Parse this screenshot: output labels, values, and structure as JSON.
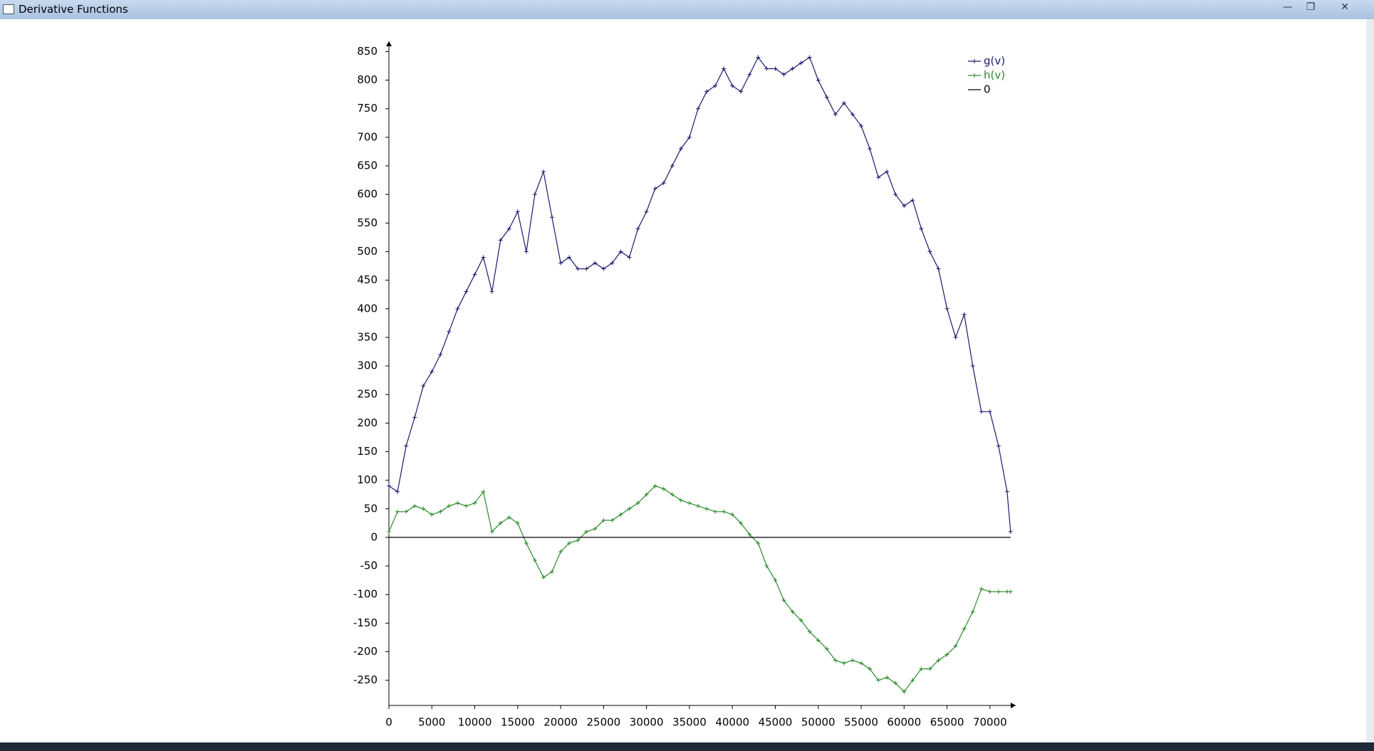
{
  "window": {
    "title": "Derivative Functions"
  },
  "chart_data": {
    "type": "line",
    "markers": true,
    "x": [
      0,
      1000,
      2000,
      3000,
      4000,
      5000,
      6000,
      7000,
      8000,
      9000,
      10000,
      11000,
      12000,
      13000,
      14000,
      15000,
      16000,
      17000,
      18000,
      19000,
      20000,
      21000,
      22000,
      23000,
      24000,
      25000,
      26000,
      27000,
      28000,
      29000,
      30000,
      31000,
      32000,
      33000,
      34000,
      35000,
      36000,
      37000,
      38000,
      39000,
      40000,
      41000,
      42000,
      43000,
      44000,
      45000,
      46000,
      47000,
      48000,
      49000,
      50000,
      51000,
      52000,
      53000,
      54000,
      55000,
      56000,
      57000,
      58000,
      59000,
      60000,
      61000,
      62000,
      63000,
      64000,
      65000,
      66000,
      67000,
      68000,
      69000,
      70000,
      71000,
      72000,
      72400
    ],
    "series": [
      {
        "name": "g(v)",
        "color": "#1a1a6e",
        "markers": true,
        "values": [
          90,
          80,
          160,
          210,
          265,
          290,
          320,
          360,
          400,
          430,
          460,
          490,
          430,
          520,
          540,
          570,
          500,
          600,
          640,
          560,
          480,
          490,
          470,
          470,
          480,
          470,
          480,
          500,
          490,
          540,
          570,
          610,
          620,
          650,
          680,
          700,
          750,
          780,
          790,
          820,
          790,
          780,
          810,
          840,
          820,
          820,
          810,
          820,
          830,
          840,
          800,
          770,
          740,
          760,
          740,
          720,
          680,
          630,
          640,
          600,
          580,
          590,
          540,
          500,
          470,
          400,
          350,
          390,
          300,
          220,
          220,
          160,
          80,
          10
        ]
      },
      {
        "name": "h(v)",
        "color": "#2a8a2a",
        "markers": true,
        "values": [
          10,
          45,
          45,
          55,
          50,
          40,
          45,
          55,
          60,
          55,
          60,
          80,
          10,
          25,
          35,
          25,
          -10,
          -40,
          -70,
          -60,
          -25,
          -10,
          -5,
          10,
          15,
          30,
          30,
          40,
          50,
          60,
          75,
          90,
          85,
          75,
          65,
          60,
          55,
          50,
          45,
          45,
          40,
          25,
          5,
          -10,
          -50,
          -75,
          -110,
          -130,
          -145,
          -165,
          -180,
          -195,
          -215,
          -220,
          -215,
          -220,
          -230,
          -250,
          -245,
          -255,
          -270,
          -250,
          -230,
          -230,
          -215,
          -205,
          -190,
          -160,
          -130,
          -90,
          -95,
          -95,
          -95,
          -95
        ]
      },
      {
        "name": "0",
        "color": "#000000",
        "markers": false,
        "values": [
          0,
          0,
          0,
          0,
          0,
          0,
          0,
          0,
          0,
          0,
          0,
          0,
          0,
          0,
          0,
          0,
          0,
          0,
          0,
          0,
          0,
          0,
          0,
          0,
          0,
          0,
          0,
          0,
          0,
          0,
          0,
          0,
          0,
          0,
          0,
          0,
          0,
          0,
          0,
          0,
          0,
          0,
          0,
          0,
          0,
          0,
          0,
          0,
          0,
          0,
          0,
          0,
          0,
          0,
          0,
          0,
          0,
          0,
          0,
          0,
          0,
          0,
          0,
          0,
          0,
          0,
          0,
          0,
          0,
          0,
          0,
          0,
          0,
          0
        ]
      }
    ],
    "xlim": [
      0,
      73000
    ],
    "ylim": [
      -294,
      868
    ],
    "xticks": [
      0,
      5000,
      10000,
      15000,
      20000,
      25000,
      30000,
      35000,
      40000,
      45000,
      50000,
      55000,
      60000,
      65000,
      70000
    ],
    "yticks": [
      -250,
      -200,
      -150,
      -100,
      -50,
      0,
      50,
      100,
      150,
      200,
      250,
      300,
      350,
      400,
      450,
      500,
      550,
      600,
      650,
      700,
      750,
      800,
      850
    ],
    "legend": "upper right"
  }
}
